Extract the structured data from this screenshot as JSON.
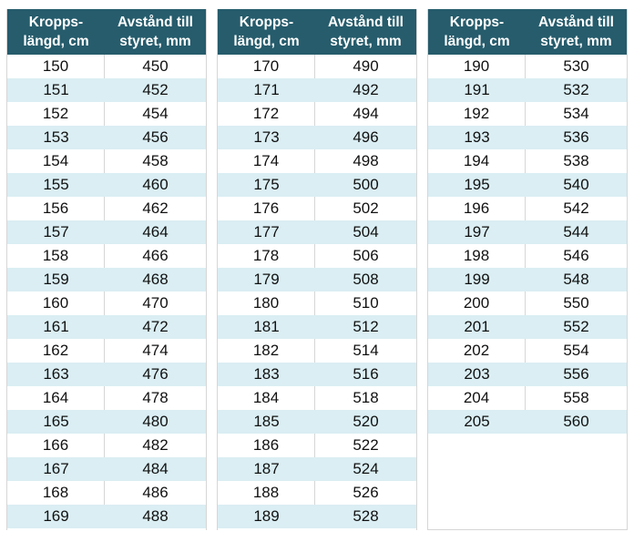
{
  "colors": {
    "header_bg": "#265c6c",
    "header_text": "#ffffff",
    "row_bg": "#ffffff",
    "row_alt_bg": "#daeef3",
    "grid_line": "#d6d6d6",
    "cell_text": "#111111",
    "page_bg": "#ffffff"
  },
  "table_header": {
    "col1_lines": [
      "Kropps-",
      "längd, cm"
    ],
    "col2_lines": [
      "Avstånd till",
      "styret, mm"
    ]
  },
  "tables": [
    {
      "name": "body-length-150-169",
      "rows": [
        [
          150,
          450
        ],
        [
          151,
          452
        ],
        [
          152,
          454
        ],
        [
          153,
          456
        ],
        [
          154,
          458
        ],
        [
          155,
          460
        ],
        [
          156,
          462
        ],
        [
          157,
          464
        ],
        [
          158,
          466
        ],
        [
          159,
          468
        ],
        [
          160,
          470
        ],
        [
          161,
          472
        ],
        [
          162,
          474
        ],
        [
          163,
          476
        ],
        [
          164,
          478
        ],
        [
          165,
          480
        ],
        [
          166,
          482
        ],
        [
          167,
          484
        ],
        [
          168,
          486
        ],
        [
          169,
          488
        ]
      ]
    },
    {
      "name": "body-length-170-189",
      "rows": [
        [
          170,
          490
        ],
        [
          171,
          492
        ],
        [
          172,
          494
        ],
        [
          173,
          496
        ],
        [
          174,
          498
        ],
        [
          175,
          500
        ],
        [
          176,
          502
        ],
        [
          177,
          504
        ],
        [
          178,
          506
        ],
        [
          179,
          508
        ],
        [
          180,
          510
        ],
        [
          181,
          512
        ],
        [
          182,
          514
        ],
        [
          183,
          516
        ],
        [
          184,
          518
        ],
        [
          185,
          520
        ],
        [
          186,
          522
        ],
        [
          187,
          524
        ],
        [
          188,
          526
        ],
        [
          189,
          528
        ]
      ]
    },
    {
      "name": "body-length-190-205",
      "rows": [
        [
          190,
          530
        ],
        [
          191,
          532
        ],
        [
          192,
          534
        ],
        [
          193,
          536
        ],
        [
          194,
          538
        ],
        [
          195,
          540
        ],
        [
          196,
          542
        ],
        [
          197,
          544
        ],
        [
          198,
          546
        ],
        [
          199,
          548
        ],
        [
          200,
          550
        ],
        [
          201,
          552
        ],
        [
          202,
          554
        ],
        [
          203,
          556
        ],
        [
          204,
          558
        ],
        [
          205,
          560
        ]
      ]
    }
  ]
}
